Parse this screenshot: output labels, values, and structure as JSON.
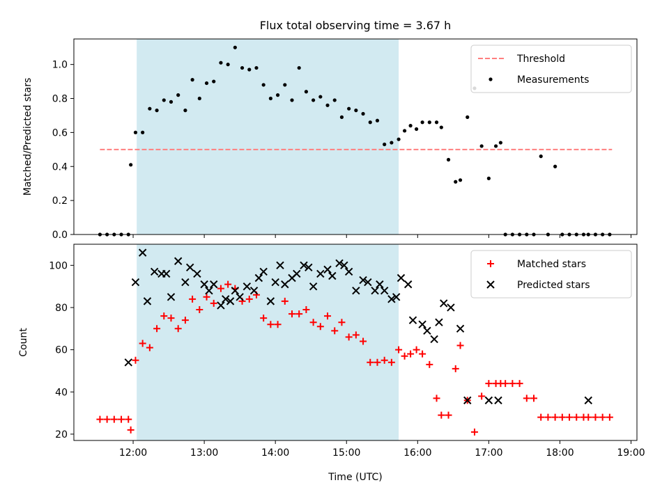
{
  "figure_title": "Flux total observing time = 3.67 h",
  "colors": {
    "span": "#add8e6",
    "threshold": "#ff7f7f",
    "measurement": "#000000",
    "matched": "#ff0000",
    "predicted": "#000000"
  },
  "chart_data": [
    {
      "type": "scatter",
      "title": "Flux total observing time = 3.67 h",
      "xlabel": "",
      "ylabel": "Matched/Predicted stars",
      "xlim": [
        "11:10",
        "19:05"
      ],
      "ylim": [
        0.0,
        1.15
      ],
      "yticks": [
        0.0,
        0.2,
        0.4,
        0.6,
        0.8,
        1.0
      ],
      "ytick_labels": [
        "0.0",
        "0.2",
        "0.4",
        "0.6",
        "0.8",
        "1.0"
      ],
      "shaded_span": [
        "12:03",
        "15:44"
      ],
      "legend": {
        "placement": "upper right",
        "entries": [
          "Threshold",
          "Measurements"
        ]
      },
      "threshold": {
        "name": "Threshold",
        "value": 0.5,
        "x_range": [
          "11:32",
          "18:44"
        ],
        "style": "dashed"
      },
      "series": [
        {
          "name": "Measurements",
          "marker": "dot",
          "x": [
            "11:32",
            "11:38",
            "11:44",
            "11:50",
            "11:56",
            "11:58",
            "12:02",
            "12:08",
            "12:14",
            "12:20",
            "12:26",
            "12:32",
            "12:38",
            "12:44",
            "12:50",
            "12:56",
            "13:02",
            "13:08",
            "13:14",
            "13:20",
            "13:26",
            "13:32",
            "13:38",
            "13:44",
            "13:50",
            "13:56",
            "14:02",
            "14:08",
            "14:14",
            "14:20",
            "14:26",
            "14:32",
            "14:38",
            "14:44",
            "14:50",
            "14:56",
            "15:02",
            "15:08",
            "15:14",
            "15:20",
            "15:26",
            "15:32",
            "15:38",
            "15:44",
            "15:49",
            "15:54",
            "15:59",
            "16:04",
            "16:10",
            "16:16",
            "16:20",
            "16:26",
            "16:32",
            "16:36",
            "16:42",
            "16:48",
            "16:54",
            "17:00",
            "17:06",
            "17:10",
            "17:14",
            "17:20",
            "17:26",
            "17:32",
            "17:38",
            "17:44",
            "17:50",
            "17:56",
            "18:02",
            "18:08",
            "18:14",
            "18:20",
            "18:24",
            "18:30",
            "18:36",
            "18:42"
          ],
          "y": [
            0.0,
            0.0,
            0.0,
            0.0,
            0.0,
            0.41,
            0.6,
            0.6,
            0.74,
            0.73,
            0.79,
            0.78,
            0.82,
            0.73,
            0.91,
            0.8,
            0.89,
            0.9,
            1.01,
            1.0,
            1.1,
            0.98,
            0.97,
            0.98,
            0.88,
            0.8,
            0.82,
            0.88,
            0.79,
            0.98,
            0.84,
            0.79,
            0.81,
            0.76,
            0.79,
            0.69,
            0.74,
            0.73,
            0.71,
            0.66,
            0.67,
            0.53,
            0.54,
            0.56,
            0.61,
            0.64,
            0.62,
            0.66,
            0.66,
            0.66,
            0.63,
            0.44,
            0.31,
            0.32,
            0.69,
            0.86,
            0.52,
            0.33,
            0.52,
            0.54,
            0.0,
            0.0,
            0.0,
            0.0,
            0.0,
            0.46,
            0.0,
            0.4,
            0.0,
            0.0,
            0.0,
            0.0,
            0.0,
            0.0,
            0.0,
            0.0
          ]
        }
      ]
    },
    {
      "type": "scatter",
      "title": "",
      "xlabel": "Time (UTC)",
      "ylabel": "Count",
      "xlim": [
        "11:10",
        "19:05"
      ],
      "ylim": [
        17,
        110
      ],
      "xticks": [
        "12:00",
        "13:00",
        "14:00",
        "15:00",
        "16:00",
        "17:00",
        "18:00",
        "19:00"
      ],
      "yticks": [
        20,
        40,
        60,
        80,
        100
      ],
      "shaded_span": [
        "12:03",
        "15:44"
      ],
      "legend": {
        "placement": "upper right",
        "entries": [
          "Matched stars",
          "Predicted stars"
        ]
      },
      "series": [
        {
          "name": "Matched stars",
          "marker": "plus",
          "x": [
            "11:32",
            "11:38",
            "11:44",
            "11:50",
            "11:56",
            "11:58",
            "12:02",
            "12:08",
            "12:14",
            "12:20",
            "12:26",
            "12:32",
            "12:38",
            "12:44",
            "12:50",
            "12:56",
            "13:02",
            "13:08",
            "13:14",
            "13:20",
            "13:26",
            "13:32",
            "13:38",
            "13:44",
            "13:50",
            "13:56",
            "14:02",
            "14:08",
            "14:14",
            "14:20",
            "14:26",
            "14:32",
            "14:38",
            "14:44",
            "14:50",
            "14:56",
            "15:02",
            "15:08",
            "15:14",
            "15:20",
            "15:26",
            "15:32",
            "15:38",
            "15:44",
            "15:49",
            "15:54",
            "15:59",
            "16:04",
            "16:10",
            "16:16",
            "16:20",
            "16:26",
            "16:32",
            "16:36",
            "16:42",
            "16:48",
            "16:54",
            "17:00",
            "17:06",
            "17:10",
            "17:14",
            "17:20",
            "17:26",
            "17:32",
            "17:38",
            "17:44",
            "17:50",
            "17:56",
            "18:02",
            "18:08",
            "18:14",
            "18:20",
            "18:24",
            "18:30",
            "18:36",
            "18:42"
          ],
          "y": [
            27,
            27,
            27,
            27,
            27,
            22,
            55,
            63,
            61,
            70,
            76,
            75,
            70,
            74,
            84,
            79,
            85,
            82,
            89,
            91,
            89,
            83,
            84,
            86,
            75,
            72,
            72,
            83,
            77,
            77,
            79,
            73,
            71,
            76,
            69,
            73,
            66,
            67,
            64,
            54,
            54,
            55,
            54,
            60,
            57,
            58,
            60,
            58,
            53,
            37,
            29,
            29,
            51,
            62,
            36,
            21,
            38,
            44,
            44,
            44,
            44,
            44,
            44,
            37,
            37,
            28,
            28,
            28,
            28,
            28,
            28,
            28,
            28,
            28,
            28,
            28
          ]
        },
        {
          "name": "Predicted stars",
          "marker": "x",
          "x": [
            "11:56",
            "12:02",
            "12:08",
            "12:12",
            "12:18",
            "12:24",
            "12:28",
            "12:32",
            "12:38",
            "12:44",
            "12:48",
            "12:54",
            "13:00",
            "13:04",
            "13:08",
            "13:14",
            "13:18",
            "13:22",
            "13:26",
            "13:30",
            "13:36",
            "13:42",
            "13:46",
            "13:50",
            "13:56",
            "14:00",
            "14:04",
            "14:08",
            "14:14",
            "14:18",
            "14:24",
            "14:28",
            "14:32",
            "14:38",
            "14:44",
            "14:48",
            "14:54",
            "14:58",
            "15:02",
            "15:08",
            "15:14",
            "15:18",
            "15:24",
            "15:28",
            "15:32",
            "15:38",
            "15:42",
            "15:46",
            "15:52",
            "15:56",
            "16:04",
            "16:08",
            "16:14",
            "16:18",
            "16:22",
            "16:28",
            "16:36",
            "16:42",
            "17:00",
            "17:08",
            "18:24"
          ],
          "y": [
            54,
            92,
            106,
            83,
            97,
            96,
            96,
            85,
            102,
            92,
            99,
            96,
            91,
            88,
            91,
            81,
            84,
            83,
            88,
            85,
            90,
            88,
            94,
            97,
            83,
            92,
            100,
            91,
            94,
            96,
            100,
            99,
            90,
            96,
            98,
            95,
            101,
            100,
            97,
            88,
            93,
            92,
            88,
            91,
            88,
            84,
            85,
            94,
            91,
            74,
            72,
            69,
            65,
            73,
            82,
            80,
            70,
            36,
            36,
            36,
            36
          ]
        }
      ]
    }
  ]
}
